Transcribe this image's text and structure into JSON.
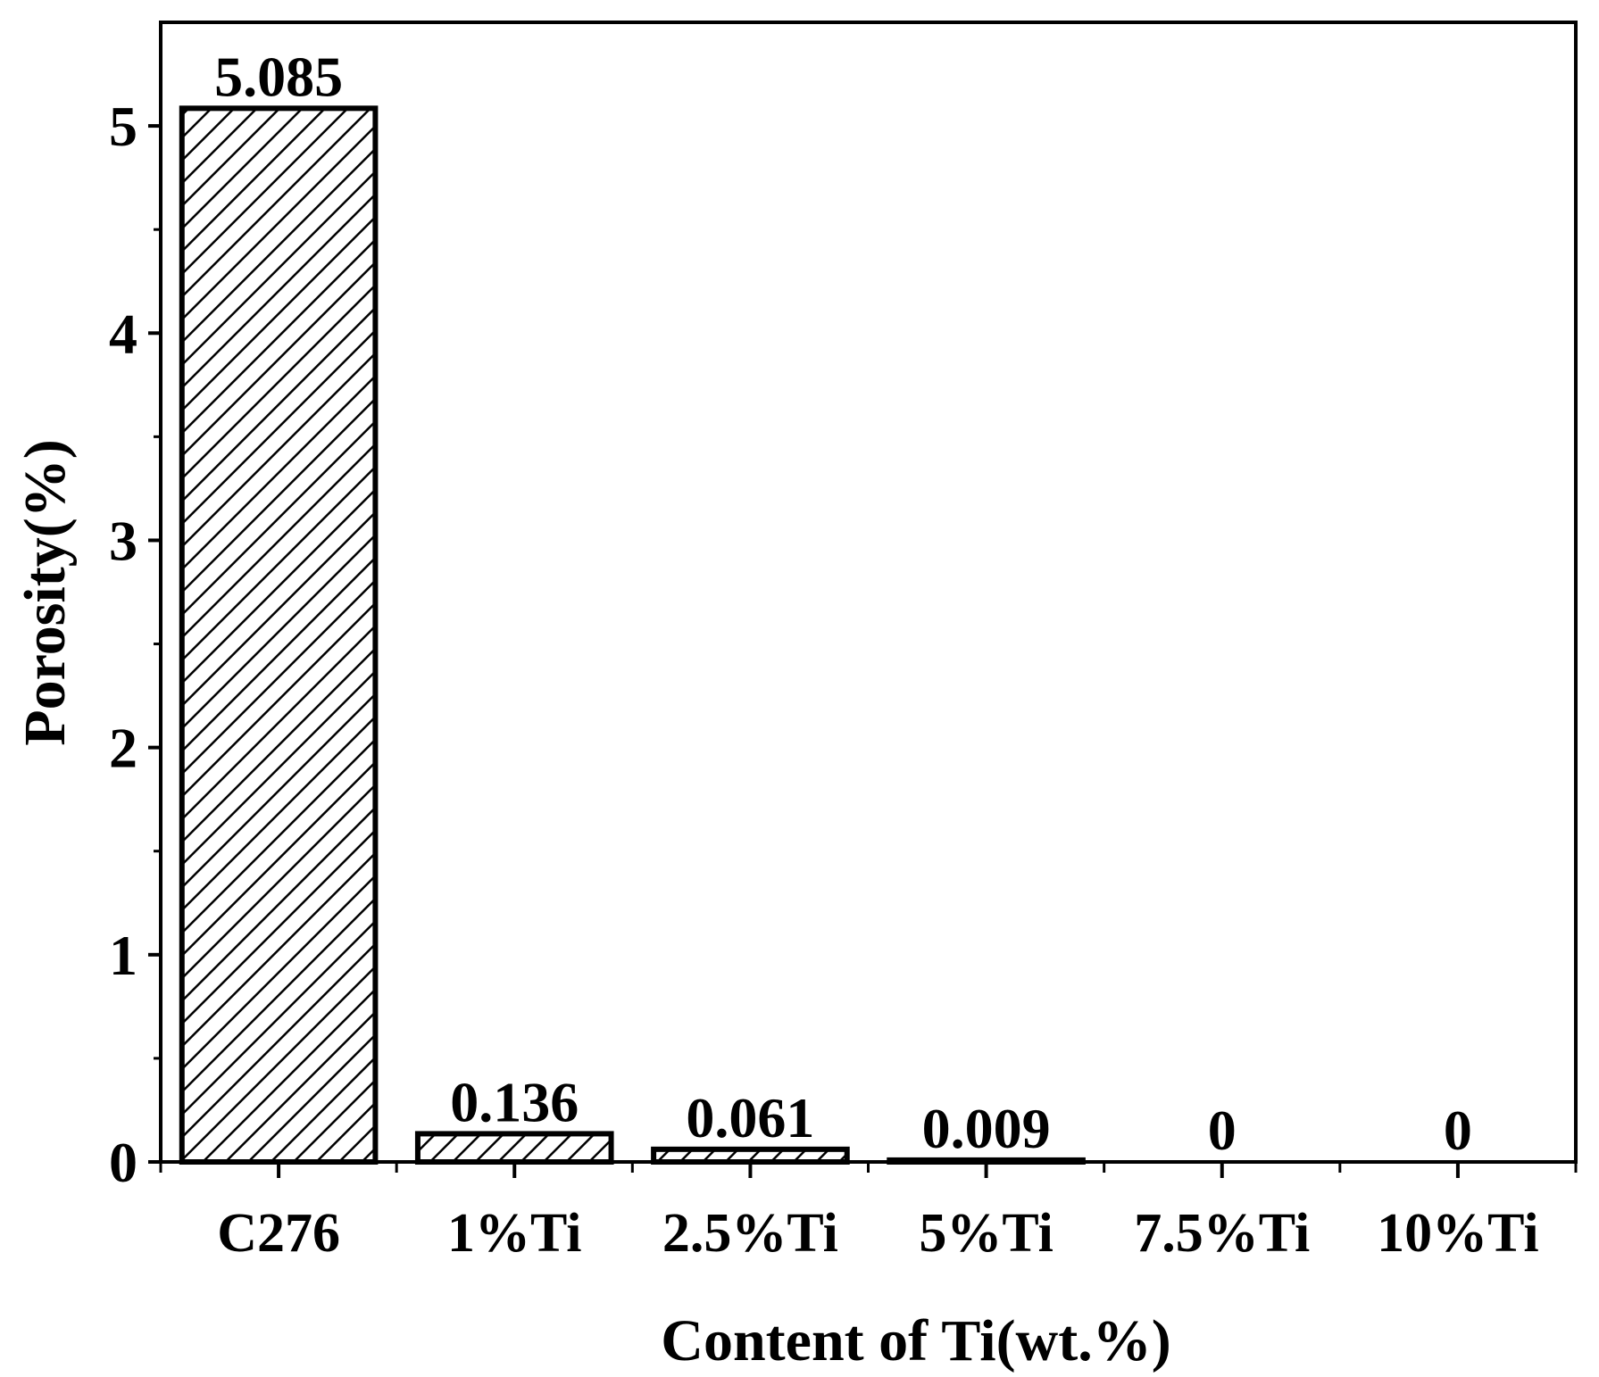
{
  "chart_data": {
    "type": "bar",
    "title": "",
    "xlabel": "Content of Ti(wt.%)",
    "ylabel": "Porosity(%)",
    "categories": [
      "C276",
      "1%Ti",
      "2.5%Ti",
      "5%Ti",
      "7.5%Ti",
      "10%Ti"
    ],
    "values": [
      5.085,
      0.136,
      0.061,
      0.009,
      0,
      0
    ],
    "data_labels": [
      "5.085",
      "0.136",
      "0.061",
      "0.009",
      "0",
      "0"
    ],
    "ylim": [
      0,
      5.5
    ],
    "yticks": [
      0,
      1,
      2,
      3,
      4,
      5
    ],
    "ytick_labels": [
      "0",
      "1",
      "2",
      "3",
      "4",
      "5"
    ],
    "minor_ytick_step": 0.5,
    "grid": false,
    "legend": "none",
    "bar_fill": "diagonal-hatch",
    "colors": {
      "bar_edge": "#000000",
      "hatch": "#000000",
      "bar_background": "#ffffff",
      "axis": "#000000"
    }
  }
}
